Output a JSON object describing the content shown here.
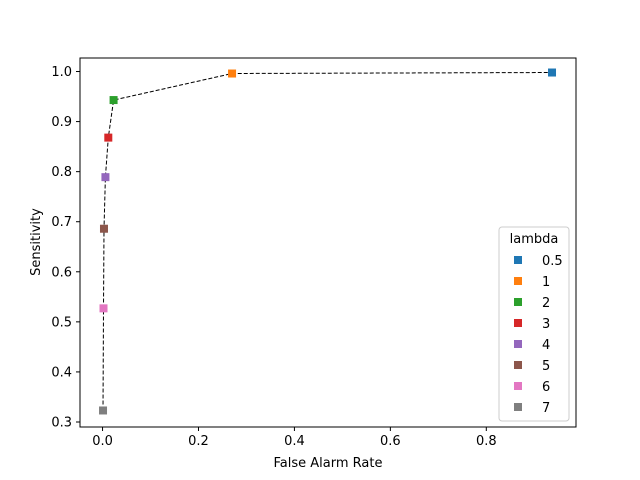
{
  "chart_data": {
    "type": "scatter",
    "xlabel": "False Alarm Rate",
    "ylabel": "Sensitivity",
    "xlim": [
      -0.047,
      0.987
    ],
    "ylim": [
      0.29,
      1.027
    ],
    "xticks": [
      0.0,
      0.2,
      0.4,
      0.6,
      0.8
    ],
    "xtick_labels": [
      "0.0",
      "0.2",
      "0.4",
      "0.6",
      "0.8"
    ],
    "yticks": [
      0.3,
      0.4,
      0.5,
      0.6,
      0.7,
      0.8,
      0.9,
      1.0
    ],
    "ytick_labels": [
      "0.3",
      "0.4",
      "0.5",
      "0.6",
      "0.7",
      "0.8",
      "0.9",
      "1.0"
    ],
    "grid": false,
    "connecting_line": "dashed-black",
    "legend": {
      "title": "lambda",
      "placement": "lower-right"
    },
    "series": [
      {
        "name": "0.5",
        "color": "#1f77b4",
        "x": 0.937,
        "y": 0.998
      },
      {
        "name": "1",
        "color": "#ff7f0e",
        "x": 0.27,
        "y": 0.996
      },
      {
        "name": "2",
        "color": "#2ca02c",
        "x": 0.023,
        "y": 0.943
      },
      {
        "name": "3",
        "color": "#d62728",
        "x": 0.012,
        "y": 0.868
      },
      {
        "name": "4",
        "color": "#9467bd",
        "x": 0.006,
        "y": 0.789
      },
      {
        "name": "5",
        "color": "#8c564b",
        "x": 0.003,
        "y": 0.686
      },
      {
        "name": "6",
        "color": "#e377c2",
        "x": 0.002,
        "y": 0.527
      },
      {
        "name": "7",
        "color": "#7f7f7f",
        "x": 0.001,
        "y": 0.323
      }
    ]
  }
}
